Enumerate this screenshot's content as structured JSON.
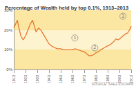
{
  "chart_data": {
    "type": "line",
    "title": "Percentage of Wealth held by top 0.1%, 1913–2013",
    "source": "SOURCE: SAEZ-ZUCMAN",
    "color": "#e8772e",
    "x": [
      1913,
      1916,
      1917,
      1919,
      1921,
      1923,
      1925,
      1927,
      1929,
      1930,
      1932,
      1934,
      1936,
      1938,
      1940,
      1943,
      1945,
      1948,
      1950,
      1953,
      1955,
      1958,
      1960,
      1963,
      1965,
      1968,
      1970,
      1973,
      1975,
      1977,
      1979,
      1981,
      1983,
      1985,
      1987,
      1990,
      1993,
      1995,
      1998,
      2000,
      2002,
      2004,
      2006,
      2008,
      2010,
      2012,
      2013
    ],
    "values": [
      21,
      25,
      22,
      17,
      15,
      17,
      20,
      23,
      25,
      23,
      19,
      21,
      20,
      18,
      16,
      13,
      12,
      11,
      10.5,
      10.5,
      10,
      10,
      10,
      10,
      10.5,
      10,
      9.5,
      9,
      8,
      7,
      7,
      7.5,
      8.5,
      9,
      10,
      11,
      12,
      12.5,
      14,
      15.5,
      15,
      16,
      17,
      18,
      18.5,
      20.5,
      22
    ],
    "xlim": [
      1913,
      2013
    ],
    "xticks": [
      1913,
      1923,
      1933,
      1943,
      1953,
      1963,
      1973,
      1983,
      1993,
      2003,
      2013
    ],
    "ylim": [
      0,
      30
    ],
    "yticks": [
      {
        "value": 0,
        "label": "0%"
      },
      {
        "value": 10,
        "label": "10%"
      },
      {
        "value": 20,
        "label": "20%"
      },
      {
        "value": 30,
        "label": "30%"
      }
    ],
    "grid": true,
    "annotations": [
      {
        "text": "1",
        "x": 1965,
        "y": 16
      },
      {
        "text": "2",
        "x": 1982,
        "y": 11
      },
      {
        "text": "3",
        "x": 2006,
        "y": 27
      }
    ]
  }
}
